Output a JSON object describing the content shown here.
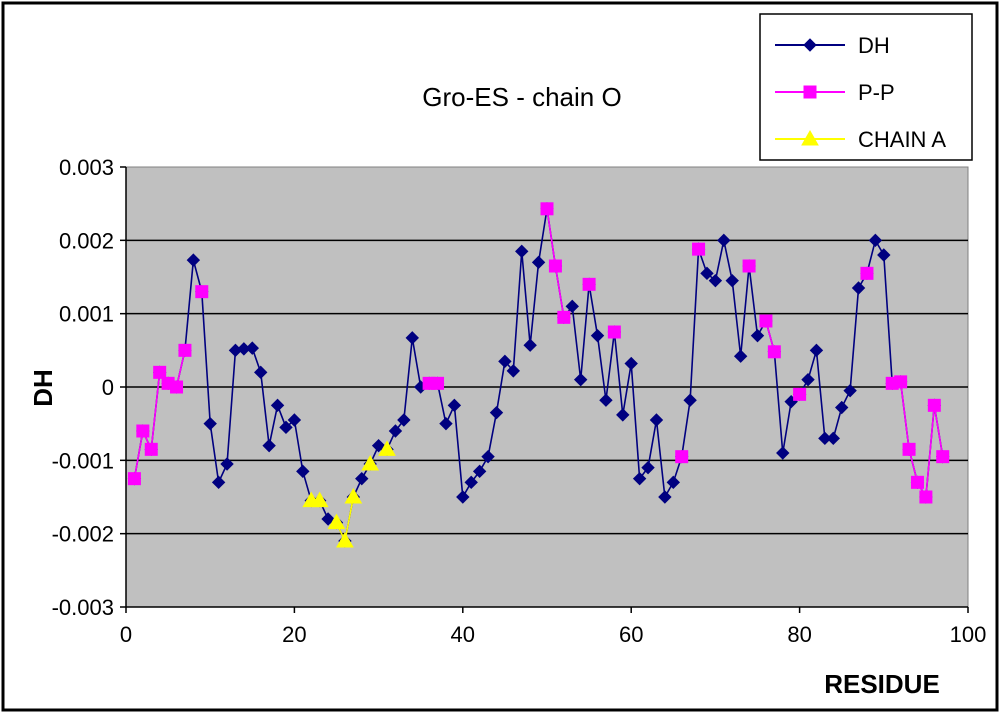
{
  "chart_data": {
    "type": "line",
    "title": "Gro-ES - chain O",
    "xlabel": "RESIDUE",
    "ylabel": "DH",
    "xlim": [
      0,
      100
    ],
    "ylim": [
      -0.003,
      0.003
    ],
    "x_ticks": [
      0,
      20,
      40,
      60,
      80,
      100
    ],
    "y_ticks": [
      0.003,
      0.002,
      0.001,
      0,
      -0.001,
      -0.002,
      -0.003
    ],
    "x_tick_labels": [
      "0",
      "20",
      "40",
      "60",
      "80",
      "100"
    ],
    "y_tick_labels": [
      "0.003",
      "0.002",
      "0.001",
      "0",
      "-0.001",
      "-0.002",
      "-0.003"
    ],
    "grid": "horizontal major",
    "legend_position": "top-right",
    "series": [
      {
        "name": "DH",
        "color": "#000080",
        "marker": "diamond",
        "x": [
          1,
          2,
          3,
          4,
          5,
          6,
          7,
          8,
          9,
          10,
          11,
          12,
          13,
          14,
          15,
          16,
          17,
          18,
          19,
          20,
          21,
          22,
          23,
          24,
          25,
          26,
          27,
          28,
          29,
          30,
          31,
          32,
          33,
          34,
          35,
          36,
          37,
          38,
          39,
          40,
          41,
          42,
          43,
          44,
          45,
          46,
          47,
          48,
          49,
          50,
          51,
          52,
          53,
          54,
          55,
          56,
          57,
          58,
          59,
          60,
          61,
          62,
          63,
          64,
          65,
          66,
          67,
          68,
          69,
          70,
          71,
          72,
          73,
          74,
          75,
          76,
          77,
          78,
          79,
          80,
          81,
          82,
          83,
          84,
          85,
          86,
          87,
          88,
          89,
          90,
          91,
          92,
          93,
          94,
          95,
          96,
          97
        ],
        "y": [
          -0.00125,
          -0.0006,
          -0.00085,
          0.0002,
          5e-05,
          0,
          0.0005,
          0.00173,
          0.0013,
          -0.0005,
          -0.0013,
          -0.00105,
          0.0005,
          0.00052,
          0.00053,
          0.0002,
          -0.0008,
          -0.00025,
          -0.00055,
          -0.00045,
          -0.00115,
          -0.00155,
          -0.00155,
          -0.0018,
          -0.00185,
          -0.0021,
          -0.0015,
          -0.00125,
          -0.00105,
          -0.0008,
          -0.00085,
          -0.0006,
          -0.00045,
          0.00067,
          0,
          5e-05,
          5e-05,
          -0.0005,
          -0.00025,
          -0.0015,
          -0.0013,
          -0.00115,
          -0.00095,
          -0.00035,
          0.00035,
          0.00022,
          0.00185,
          0.00057,
          0.0017,
          0.00243,
          0.00165,
          0.00095,
          0.0011,
          0.0001,
          0.0014,
          0.0007,
          -0.00018,
          0.00075,
          -0.00038,
          0.00032,
          -0.00125,
          -0.0011,
          -0.00045,
          -0.0015,
          -0.0013,
          -0.00095,
          -0.00018,
          0.00188,
          0.00155,
          0.00145,
          0.002,
          0.00145,
          0.00042,
          0.00165,
          0.0007,
          0.0009,
          0.00048,
          -0.0009,
          -0.0002,
          -0.0001,
          0.0001,
          0.0005,
          -0.0007,
          -0.0007,
          -0.00028,
          -5e-05,
          0.00135,
          0.00155,
          0.002,
          0.0018,
          5e-05,
          7e-05,
          -0.00085,
          -0.0013,
          -0.0015,
          -0.00025,
          -0.00095
        ]
      },
      {
        "name": "P-P",
        "color": "#ff00ff",
        "marker": "square",
        "segments": [
          {
            "x": [
              1,
              2,
              3,
              4,
              5,
              6,
              7
            ],
            "y": [
              -0.00125,
              -0.0006,
              -0.00085,
              0.0002,
              5e-05,
              0,
              0.0005
            ]
          },
          {
            "x": [
              9
            ],
            "y": [
              0.0013
            ]
          },
          {
            "x": [
              36,
              37
            ],
            "y": [
              5e-05,
              5e-05
            ]
          },
          {
            "x": [
              50,
              51,
              52
            ],
            "y": [
              0.00243,
              0.00165,
              0.00095
            ]
          },
          {
            "x": [
              55
            ],
            "y": [
              0.0014
            ]
          },
          {
            "x": [
              58
            ],
            "y": [
              0.00075
            ]
          },
          {
            "x": [
              66
            ],
            "y": [
              -0.00095
            ]
          },
          {
            "x": [
              68
            ],
            "y": [
              0.00188
            ]
          },
          {
            "x": [
              74
            ],
            "y": [
              0.00165
            ]
          },
          {
            "x": [
              76,
              77
            ],
            "y": [
              0.0009,
              0.00048
            ]
          },
          {
            "x": [
              80
            ],
            "y": [
              -0.0001
            ]
          },
          {
            "x": [
              88
            ],
            "y": [
              0.00155
            ]
          },
          {
            "x": [
              91,
              92,
              93,
              94,
              95,
              96,
              97
            ],
            "y": [
              5e-05,
              7e-05,
              -0.00085,
              -0.0013,
              -0.0015,
              -0.00025,
              -0.00095
            ]
          }
        ]
      },
      {
        "name": "CHAIN A",
        "color": "#ffff00",
        "marker": "triangle",
        "segments": [
          {
            "x": [
              22,
              23
            ],
            "y": [
              -0.00155,
              -0.00155
            ]
          },
          {
            "x": [
              25,
              26,
              27
            ],
            "y": [
              -0.00185,
              -0.0021,
              -0.0015
            ]
          },
          {
            "x": [
              29
            ],
            "y": [
              -0.00105
            ]
          },
          {
            "x": [
              31
            ],
            "y": [
              -0.00085
            ]
          }
        ]
      }
    ]
  }
}
